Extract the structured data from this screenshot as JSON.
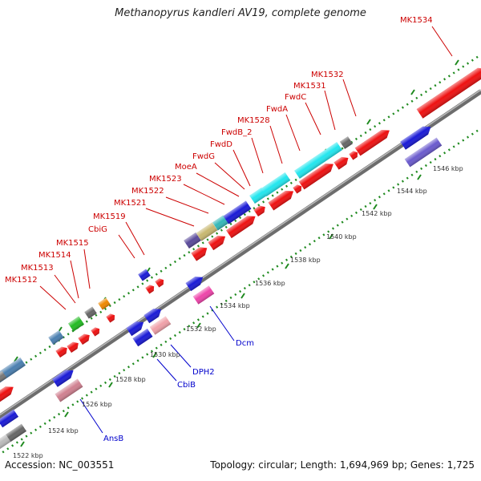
{
  "title": "Methanopyrus kandleri AV19, complete genome",
  "footer": {
    "accession_label": "Accession:",
    "accession_value": "NC_003551",
    "topology_label": "Topology:",
    "topology_value": "circular",
    "length_label": "Length:",
    "length_value": "1,694,969 bp",
    "genes_label": "Genes:",
    "genes_value": "1,725"
  },
  "colors": {
    "backbone": "#7f7f7f",
    "ruler_dots": "#1f8a1f",
    "label_forward": "#cc0000",
    "label_reverse": "#0000cc",
    "gene_red": "#ee1111",
    "gene_blue": "#1a1ad6"
  },
  "ticks": [
    "1522 kbp",
    "1524 kbp",
    "1526 kbp",
    "1528 kbp",
    "1530 kbp",
    "1532 kbp",
    "1534 kbp",
    "1536 kbp",
    "1538 kbp",
    "1540 kbp",
    "1542 kbp",
    "1544 kbp",
    "1546 kbp"
  ],
  "forward_labels": [
    "MK1512",
    "MK1513",
    "MK1514",
    "MK1515",
    "CbiG",
    "MK1519",
    "MK1521",
    "MK1522",
    "MK1523",
    "MoeA",
    "FwdG",
    "FwdD",
    "FwdB_2",
    "MK1528",
    "FwdA",
    "FwdC",
    "MK1531",
    "MK1532",
    "MK1534"
  ],
  "reverse_labels": [
    "AnsB",
    "CbiB",
    "DPH2",
    "Dcm"
  ]
}
